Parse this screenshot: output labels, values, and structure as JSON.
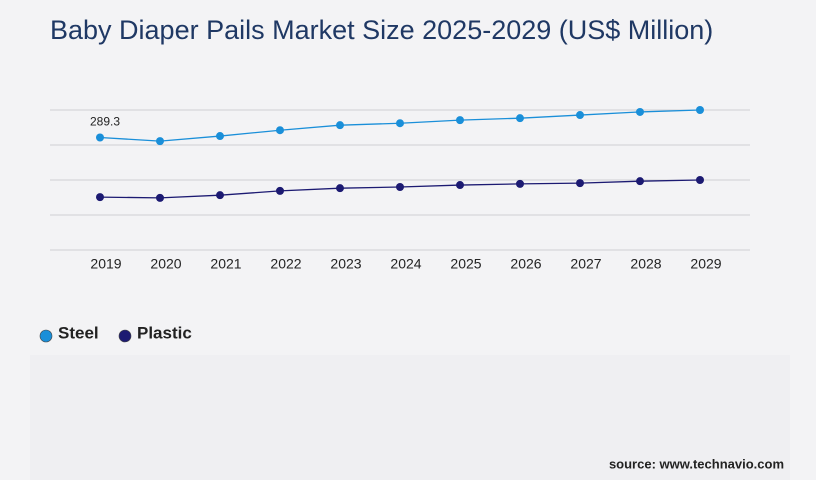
{
  "title": "Baby Diaper Pails Market Size 2025-2029 (US$ Million)",
  "source": "source: www.technavio.com",
  "chart_data": {
    "type": "line",
    "categories": [
      "2019",
      "2020",
      "2021",
      "2022",
      "2023",
      "2024",
      "2025",
      "2026",
      "2027",
      "2028",
      "2029"
    ],
    "series": [
      {
        "name": "Steel",
        "color": "#1a8fd9",
        "values": [
          289.3,
          280,
          293,
          308,
          321,
          326,
          334,
          339,
          347,
          355,
          360
        ]
      },
      {
        "name": "Plastic",
        "color": "#1c1a72",
        "values": [
          136,
          134,
          141,
          152,
          159,
          162,
          167,
          170,
          172,
          177,
          180
        ]
      }
    ],
    "ylim": [
      0,
      360
    ]
  }
}
